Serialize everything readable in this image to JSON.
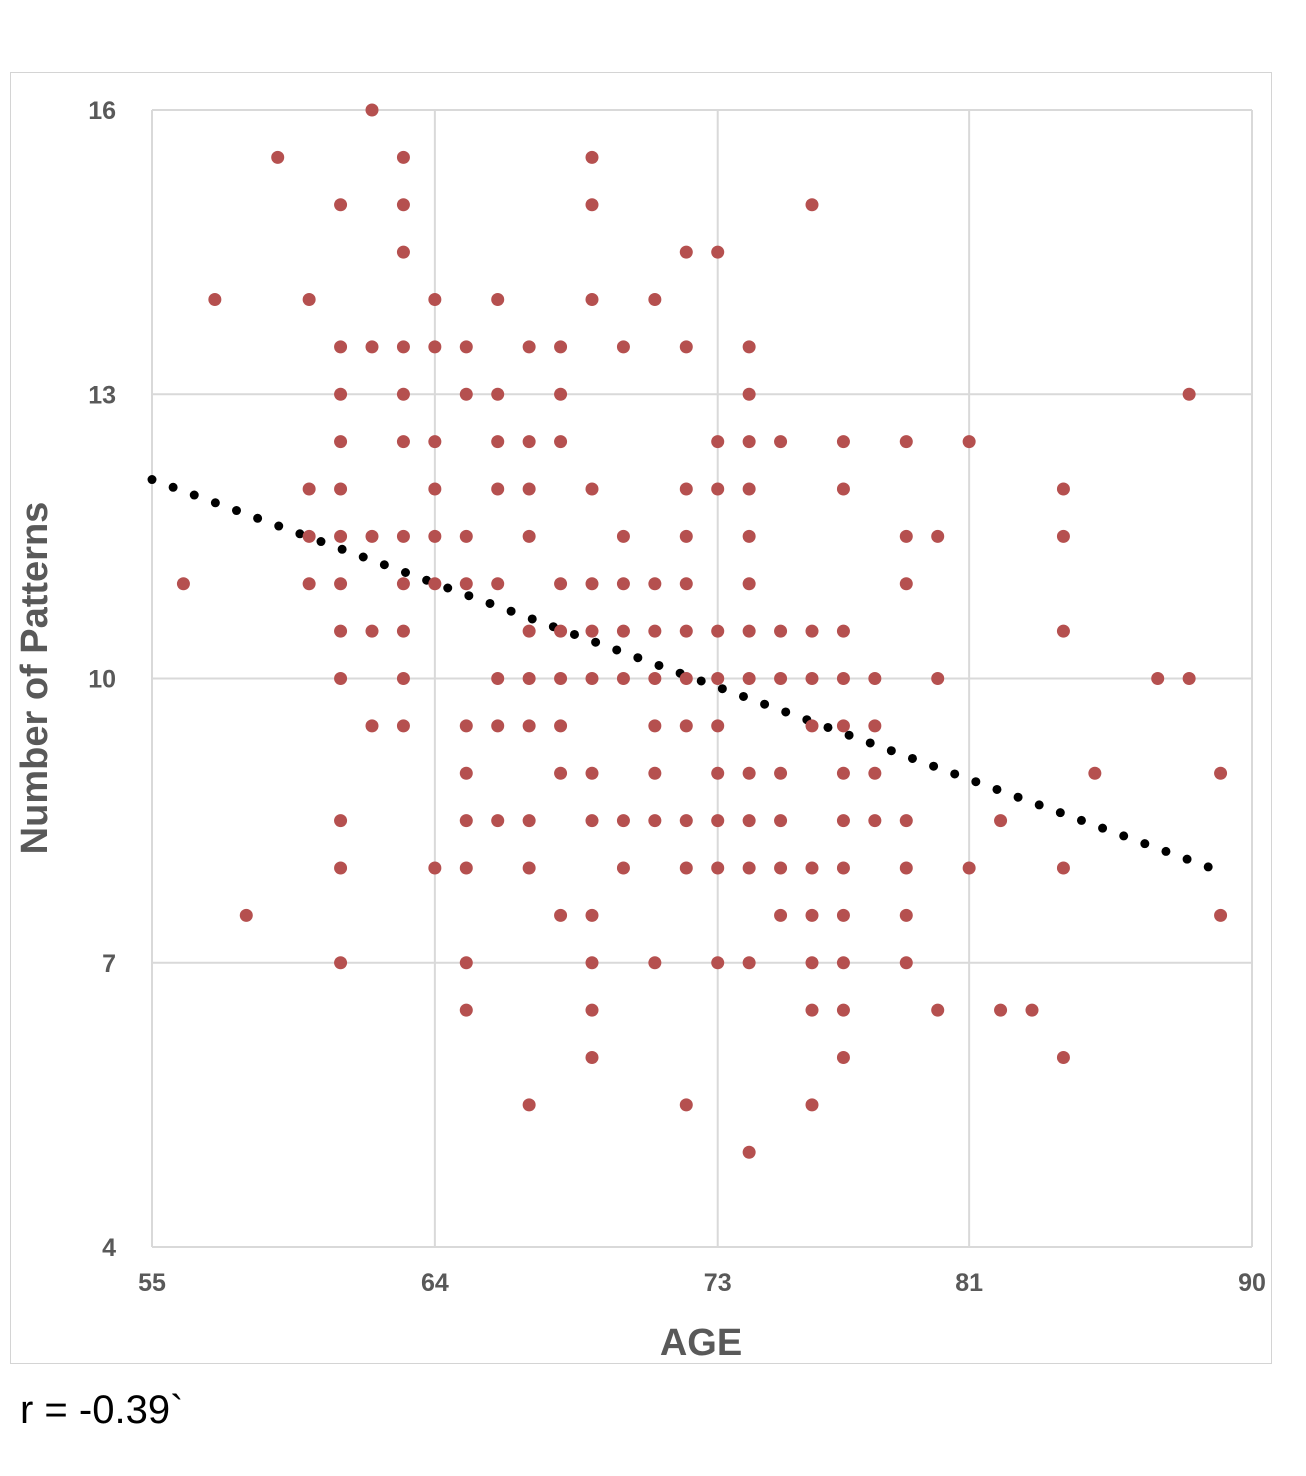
{
  "chart_data": {
    "type": "scatter",
    "xlabel": "AGE",
    "ylabel": "Number of Patterns",
    "xticks": [
      55,
      64,
      73,
      81,
      90
    ],
    "yticks": [
      4,
      7,
      10,
      13,
      16
    ],
    "xlim": [
      55,
      90
    ],
    "ylim": [
      4,
      16
    ],
    "grid": true,
    "colors": {
      "points": "#b5504f",
      "trendline": "#000000",
      "grid": "#d9d9d9",
      "text": "#595959"
    },
    "series": [
      {
        "type": "scatter",
        "points": [
          [
            56,
            11
          ],
          [
            57,
            14
          ],
          [
            58,
            7.5
          ],
          [
            59,
            15.5
          ],
          [
            60,
            14
          ],
          [
            60,
            12
          ],
          [
            60,
            11.5
          ],
          [
            60,
            11
          ],
          [
            61,
            15
          ],
          [
            61,
            13.5
          ],
          [
            61,
            13
          ],
          [
            61,
            12.5
          ],
          [
            61,
            12
          ],
          [
            61,
            11.5
          ],
          [
            61,
            11
          ],
          [
            61,
            10.5
          ],
          [
            61,
            10
          ],
          [
            61,
            8.5
          ],
          [
            61,
            8
          ],
          [
            61,
            7
          ],
          [
            62,
            16
          ],
          [
            62,
            13.5
          ],
          [
            62,
            11.5
          ],
          [
            62,
            10.5
          ],
          [
            62,
            9.5
          ],
          [
            63,
            15.5
          ],
          [
            63,
            15
          ],
          [
            63,
            14.5
          ],
          [
            63,
            13.5
          ],
          [
            63,
            13
          ],
          [
            63,
            12.5
          ],
          [
            63,
            11.5
          ],
          [
            63,
            11
          ],
          [
            63,
            10.5
          ],
          [
            63,
            10
          ],
          [
            63,
            9.5
          ],
          [
            64,
            14
          ],
          [
            64,
            13.5
          ],
          [
            64,
            12.5
          ],
          [
            64,
            12
          ],
          [
            64,
            11.5
          ],
          [
            64,
            11
          ],
          [
            64,
            8
          ],
          [
            65,
            13.5
          ],
          [
            65,
            13
          ],
          [
            65,
            11.5
          ],
          [
            65,
            11
          ],
          [
            65,
            9.5
          ],
          [
            65,
            9
          ],
          [
            65,
            8.5
          ],
          [
            65,
            8
          ],
          [
            65,
            7
          ],
          [
            65,
            6.5
          ],
          [
            66,
            14
          ],
          [
            66,
            13
          ],
          [
            66,
            12.5
          ],
          [
            66,
            12
          ],
          [
            66,
            11
          ],
          [
            66,
            10
          ],
          [
            66,
            9.5
          ],
          [
            66,
            8.5
          ],
          [
            67,
            13.5
          ],
          [
            67,
            12.5
          ],
          [
            67,
            12
          ],
          [
            67,
            11.5
          ],
          [
            67,
            10.5
          ],
          [
            67,
            10
          ],
          [
            67,
            9.5
          ],
          [
            67,
            8.5
          ],
          [
            67,
            8
          ],
          [
            67,
            5.5
          ],
          [
            68,
            13.5
          ],
          [
            68,
            13
          ],
          [
            68,
            12.5
          ],
          [
            68,
            11
          ],
          [
            68,
            10.5
          ],
          [
            68,
            10
          ],
          [
            68,
            9.5
          ],
          [
            68,
            9
          ],
          [
            68,
            7.5
          ],
          [
            69,
            15.5
          ],
          [
            69,
            15
          ],
          [
            69,
            14
          ],
          [
            69,
            12
          ],
          [
            69,
            11
          ],
          [
            69,
            10.5
          ],
          [
            69,
            10
          ],
          [
            69,
            9
          ],
          [
            69,
            8.5
          ],
          [
            69,
            7.5
          ],
          [
            69,
            7
          ],
          [
            69,
            6.5
          ],
          [
            69,
            6
          ],
          [
            70,
            13.5
          ],
          [
            70,
            11.5
          ],
          [
            70,
            11
          ],
          [
            70,
            10.5
          ],
          [
            70,
            10
          ],
          [
            70,
            8.5
          ],
          [
            70,
            8
          ],
          [
            71,
            14
          ],
          [
            71,
            11
          ],
          [
            71,
            10.5
          ],
          [
            71,
            10
          ],
          [
            71,
            9.5
          ],
          [
            71,
            9
          ],
          [
            71,
            8.5
          ],
          [
            71,
            7
          ],
          [
            72,
            14.5
          ],
          [
            72,
            13.5
          ],
          [
            72,
            12
          ],
          [
            72,
            11.5
          ],
          [
            72,
            11
          ],
          [
            72,
            10.5
          ],
          [
            72,
            10
          ],
          [
            72,
            9.5
          ],
          [
            72,
            8.5
          ],
          [
            72,
            8
          ],
          [
            72,
            5.5
          ],
          [
            73,
            14.5
          ],
          [
            73,
            12.5
          ],
          [
            73,
            12
          ],
          [
            73,
            10.5
          ],
          [
            73,
            10
          ],
          [
            73,
            9.5
          ],
          [
            73,
            9
          ],
          [
            73,
            8.5
          ],
          [
            73,
            8
          ],
          [
            73,
            7
          ],
          [
            74,
            13.5
          ],
          [
            74,
            13
          ],
          [
            74,
            12.5
          ],
          [
            74,
            12
          ],
          [
            74,
            11.5
          ],
          [
            74,
            11
          ],
          [
            74,
            10.5
          ],
          [
            74,
            10
          ],
          [
            74,
            9
          ],
          [
            74,
            8.5
          ],
          [
            74,
            8
          ],
          [
            74,
            7
          ],
          [
            74,
            5
          ],
          [
            75,
            12.5
          ],
          [
            75,
            10.5
          ],
          [
            75,
            10
          ],
          [
            75,
            9
          ],
          [
            75,
            8.5
          ],
          [
            75,
            8
          ],
          [
            75,
            7.5
          ],
          [
            76,
            15
          ],
          [
            76,
            10.5
          ],
          [
            76,
            10
          ],
          [
            76,
            9.5
          ],
          [
            76,
            8
          ],
          [
            76,
            7.5
          ],
          [
            76,
            7
          ],
          [
            76,
            6.5
          ],
          [
            76,
            5.5
          ],
          [
            77,
            12.5
          ],
          [
            77,
            12
          ],
          [
            77,
            10.5
          ],
          [
            77,
            10
          ],
          [
            77,
            9.5
          ],
          [
            77,
            9
          ],
          [
            77,
            8.5
          ],
          [
            77,
            8
          ],
          [
            77,
            7.5
          ],
          [
            77,
            7
          ],
          [
            77,
            6.5
          ],
          [
            77,
            6
          ],
          [
            78,
            10
          ],
          [
            78,
            9.5
          ],
          [
            78,
            9
          ],
          [
            78,
            8.5
          ],
          [
            79,
            12.5
          ],
          [
            79,
            11.5
          ],
          [
            79,
            11
          ],
          [
            79,
            8.5
          ],
          [
            79,
            8
          ],
          [
            79,
            7.5
          ],
          [
            79,
            7
          ],
          [
            80,
            11.5
          ],
          [
            80,
            10
          ],
          [
            80,
            6.5
          ],
          [
            81,
            12.5
          ],
          [
            81,
            8
          ],
          [
            82,
            8.5
          ],
          [
            82,
            6.5
          ],
          [
            83,
            6.5
          ],
          [
            84,
            12
          ],
          [
            84,
            11.5
          ],
          [
            84,
            10.5
          ],
          [
            84,
            8
          ],
          [
            84,
            6
          ],
          [
            85,
            9
          ],
          [
            87,
            10
          ],
          [
            88,
            13
          ],
          [
            88,
            10
          ],
          [
            89,
            9
          ],
          [
            89,
            7.5
          ]
        ]
      },
      {
        "type": "trendline",
        "style": "dotted",
        "from": [
          55,
          12.1
        ],
        "to": [
          88.7,
          8.0
        ]
      }
    ]
  },
  "annotation": "r = -0.39`"
}
